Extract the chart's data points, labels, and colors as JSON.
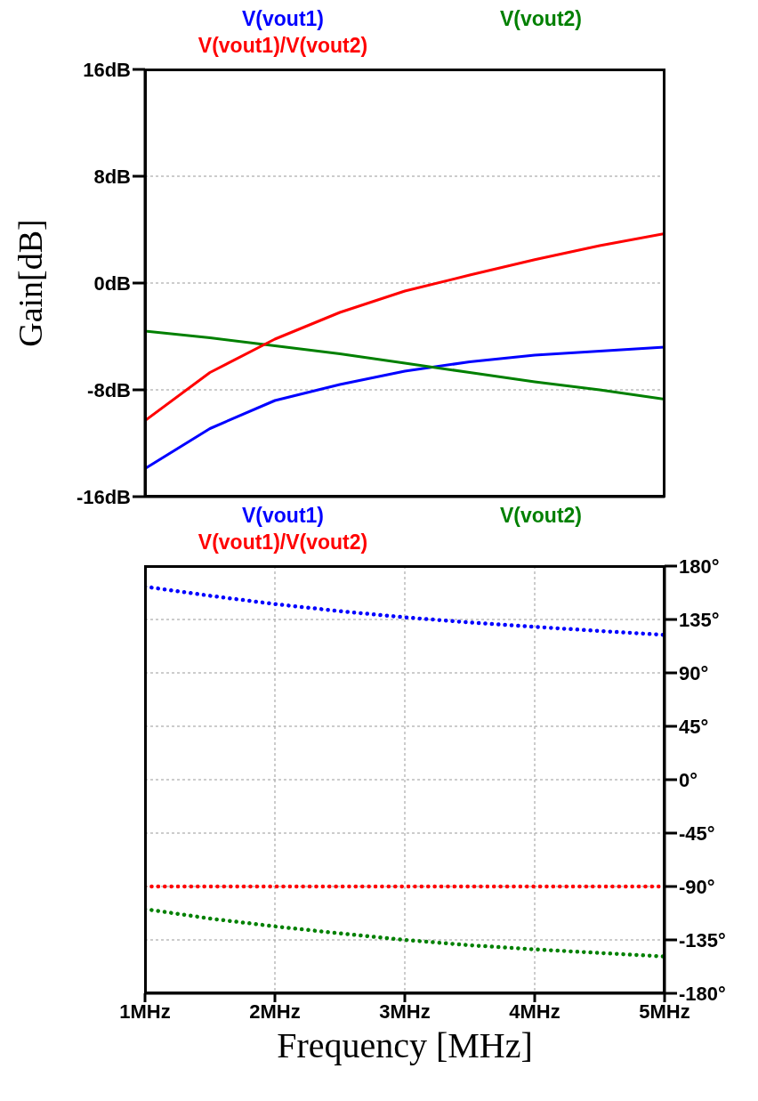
{
  "chart_data": [
    {
      "type": "line",
      "ylabel": "Gain[dB]",
      "legend": "top",
      "grid": true,
      "line_style": "solid",
      "tick_labels": "y",
      "x": [
        1,
        1.5,
        2,
        2.5,
        3,
        3.5,
        4,
        4.5,
        5
      ],
      "xlim": [
        1,
        5
      ],
      "xticks": [
        {
          "value": 1,
          "label": null
        },
        {
          "value": 2,
          "label": null
        },
        {
          "value": 3,
          "label": null
        },
        {
          "value": 4,
          "label": null
        },
        {
          "value": 5,
          "label": null
        }
      ],
      "ylim": [
        -16,
        16
      ],
      "yticks": [
        {
          "value": -16,
          "label": "-16dB"
        },
        {
          "value": -8,
          "label": "-8dB"
        },
        {
          "value": 0,
          "label": "0dB"
        },
        {
          "value": 8,
          "label": "8dB"
        },
        {
          "value": 16,
          "label": "16dB"
        }
      ],
      "series": [
        {
          "name": "V(vout1)",
          "color": "#0000ff",
          "values": [
            -13.9,
            -10.9,
            -8.8,
            -7.6,
            -6.6,
            -5.9,
            -5.4,
            -5.1,
            -4.8
          ]
        },
        {
          "name": "V(vout2)",
          "color": "#008000",
          "values": [
            -3.6,
            -4.1,
            -4.7,
            -5.3,
            -6.0,
            -6.7,
            -7.4,
            -8.0,
            -8.7
          ]
        },
        {
          "name": "V(vout1)/V(vout2)",
          "color": "#ff0000",
          "values": [
            -10.3,
            -6.7,
            -4.2,
            -2.2,
            -0.6,
            0.6,
            1.75,
            2.8,
            3.7
          ]
        }
      ]
    },
    {
      "type": "line",
      "xlabel": "Frequency [MHz]",
      "legend": "top",
      "grid": true,
      "line_style": "dotted",
      "x": [
        1,
        1.5,
        2,
        2.5,
        3,
        3.5,
        4,
        4.5,
        5
      ],
      "xlim": [
        1,
        5
      ],
      "xticks": [
        {
          "value": 1,
          "label": "1MHz"
        },
        {
          "value": 2,
          "label": "2MHz"
        },
        {
          "value": 3,
          "label": "3MHz"
        },
        {
          "value": 4,
          "label": "4MHz"
        },
        {
          "value": 5,
          "label": "5MHz"
        }
      ],
      "y2lim": [
        -180,
        180
      ],
      "y2ticks": [
        {
          "value": -180,
          "label": "-180°"
        },
        {
          "value": -135,
          "label": "-135°"
        },
        {
          "value": -90,
          "label": "-90°"
        },
        {
          "value": -45,
          "label": "-45°"
        },
        {
          "value": 0,
          "label": "0°"
        },
        {
          "value": 45,
          "label": "45°"
        },
        {
          "value": 90,
          "label": "90°"
        },
        {
          "value": 135,
          "label": "135°"
        },
        {
          "value": 180,
          "label": "180°"
        }
      ],
      "series": [
        {
          "name": "V(vout1)",
          "color": "#0000ff",
          "axis": "y2",
          "values": [
            162.7,
            155,
            148,
            142,
            136.8,
            132.5,
            128.8,
            125.3,
            122
          ]
        },
        {
          "name": "V(vout2)",
          "color": "#008000",
          "axis": "y2",
          "values": [
            -109,
            -117,
            -123.6,
            -129.5,
            -135,
            -139.5,
            -143,
            -146,
            -149
          ]
        },
        {
          "name": "V(vout1)/V(vout2)",
          "color": "#ff0000",
          "axis": "y2",
          "values": [
            -90,
            -90,
            -90,
            -90,
            -90,
            -90,
            -90,
            -90,
            -90
          ]
        }
      ]
    }
  ]
}
